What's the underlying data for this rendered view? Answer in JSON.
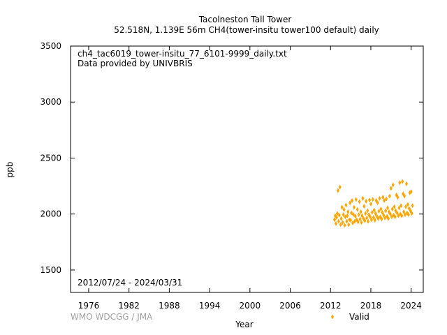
{
  "chart_data": {
    "type": "scatter",
    "title": "Tacolneston Tall Tower",
    "subtitle": "52.518N, 1.139E 56m    CH4(tower-insitu tower100 default) daily",
    "file_label": "ch4_tac6019_tower-insitu_77_6101-9999_daily.txt",
    "provider_label": "Data provided by UNIVBRIS",
    "date_range_label": "2012/07/24 - 2024/03/31",
    "xlabel": "Year",
    "ylabel": "ppb",
    "xlim": [
      1973.3,
      2025.8
    ],
    "ylim": [
      1300,
      3500
    ],
    "x_ticks": [
      {
        "value": 1976,
        "label": "1976"
      },
      {
        "value": 1982,
        "label": "1982"
      },
      {
        "value": 1988,
        "label": "1988"
      },
      {
        "value": 1994,
        "label": "1994"
      },
      {
        "value": 2000,
        "label": "2000"
      },
      {
        "value": 2006,
        "label": "2006"
      },
      {
        "value": 2012,
        "label": "2012"
      },
      {
        "value": 2018,
        "label": "2018"
      },
      {
        "value": 2024,
        "label": "2024"
      }
    ],
    "y_ticks": [
      {
        "value": 1500,
        "label": "1500"
      },
      {
        "value": 2000,
        "label": "2000"
      },
      {
        "value": 2500,
        "label": "2500"
      },
      {
        "value": 3000,
        "label": "3000"
      },
      {
        "value": 3500,
        "label": "3500"
      }
    ],
    "legend": {
      "position": "bottom-right",
      "entries": [
        {
          "name": "Valid",
          "color": "#ffa500"
        }
      ]
    },
    "grid": false,
    "series": [
      {
        "name": "Valid",
        "color": "#ffa500",
        "points": [
          [
            2012.6,
            1950
          ],
          [
            2012.7,
            1985
          ],
          [
            2012.8,
            1915
          ],
          [
            2012.9,
            1970
          ],
          [
            2013.0,
            2005
          ],
          [
            2013.1,
            2210
          ],
          [
            2013.2,
            1935
          ],
          [
            2013.3,
            1990
          ],
          [
            2013.4,
            2240
          ],
          [
            2013.5,
            1905
          ],
          [
            2013.6,
            1960
          ],
          [
            2013.7,
            2060
          ],
          [
            2013.8,
            1925
          ],
          [
            2013.9,
            1995
          ],
          [
            2014.0,
            2040
          ],
          [
            2014.1,
            1900
          ],
          [
            2014.2,
            1975
          ],
          [
            2014.3,
            2080
          ],
          [
            2014.4,
            1935
          ],
          [
            2014.5,
            1985
          ],
          [
            2014.6,
            2020
          ],
          [
            2014.7,
            1905
          ],
          [
            2014.8,
            1950
          ],
          [
            2014.9,
            2100
          ],
          [
            2015.0,
            1945
          ],
          [
            2015.1,
            2010
          ],
          [
            2015.2,
            2120
          ],
          [
            2015.3,
            1920
          ],
          [
            2015.4,
            1995
          ],
          [
            2015.5,
            2060
          ],
          [
            2015.6,
            1935
          ],
          [
            2015.7,
            1980
          ],
          [
            2015.8,
            2130
          ],
          [
            2015.9,
            1950
          ],
          [
            2016.0,
            2040
          ],
          [
            2016.1,
            1930
          ],
          [
            2016.2,
            1995
          ],
          [
            2016.3,
            2110
          ],
          [
            2016.4,
            1955
          ],
          [
            2016.5,
            2020
          ],
          [
            2016.6,
            1925
          ],
          [
            2016.7,
            1985
          ],
          [
            2016.8,
            2140
          ],
          [
            2016.9,
            1960
          ],
          [
            2017.0,
            2070
          ],
          [
            2017.1,
            1940
          ],
          [
            2017.2,
            2005
          ],
          [
            2017.3,
            2115
          ],
          [
            2017.4,
            1965
          ],
          [
            2017.5,
            2030
          ],
          [
            2017.6,
            1935
          ],
          [
            2017.7,
            1995
          ],
          [
            2017.8,
            2125
          ],
          [
            2017.9,
            1975
          ],
          [
            2018.0,
            2090
          ],
          [
            2018.1,
            1950
          ],
          [
            2018.2,
            2015
          ],
          [
            2018.3,
            2130
          ],
          [
            2018.4,
            1970
          ],
          [
            2018.5,
            2035
          ],
          [
            2018.6,
            1945
          ],
          [
            2018.7,
            2005
          ],
          [
            2018.8,
            2120
          ],
          [
            2018.9,
            1980
          ],
          [
            2019.0,
            2100
          ],
          [
            2019.1,
            1960
          ],
          [
            2019.2,
            2025
          ],
          [
            2019.3,
            2140
          ],
          [
            2019.4,
            1975
          ],
          [
            2019.5,
            2045
          ],
          [
            2019.6,
            1955
          ],
          [
            2019.7,
            2015
          ],
          [
            2019.8,
            2150
          ],
          [
            2019.9,
            1990
          ],
          [
            2020.0,
            2120
          ],
          [
            2020.1,
            1965
          ],
          [
            2020.2,
            2030
          ],
          [
            2020.3,
            2135
          ],
          [
            2020.4,
            1980
          ],
          [
            2020.5,
            2055
          ],
          [
            2020.6,
            1960
          ],
          [
            2020.7,
            2020
          ],
          [
            2020.8,
            2160
          ],
          [
            2020.9,
            2000
          ],
          [
            2021.0,
            2230
          ],
          [
            2021.1,
            1975
          ],
          [
            2021.2,
            2045
          ],
          [
            2021.3,
            2260
          ],
          [
            2021.4,
            1990
          ],
          [
            2021.5,
            2065
          ],
          [
            2021.6,
            1975
          ],
          [
            2021.7,
            2030
          ],
          [
            2021.8,
            2170
          ],
          [
            2021.9,
            2010
          ],
          [
            2022.0,
            2150
          ],
          [
            2022.1,
            1985
          ],
          [
            2022.2,
            2055
          ],
          [
            2022.3,
            2280
          ],
          [
            2022.4,
            2000
          ],
          [
            2022.5,
            2075
          ],
          [
            2022.6,
            1985
          ],
          [
            2022.7,
            2290
          ],
          [
            2022.8,
            2180
          ],
          [
            2022.9,
            2020
          ],
          [
            2023.0,
            2160
          ],
          [
            2023.1,
            1995
          ],
          [
            2023.2,
            2065
          ],
          [
            2023.3,
            2270
          ],
          [
            2023.4,
            2010
          ],
          [
            2023.5,
            2085
          ],
          [
            2023.6,
            1995
          ],
          [
            2023.7,
            2050
          ],
          [
            2023.8,
            2190
          ],
          [
            2023.9,
            2030
          ],
          [
            2024.0,
            2200
          ],
          [
            2024.1,
            2005
          ],
          [
            2024.2,
            2075
          ]
        ]
      }
    ]
  },
  "footer": {
    "credit": "WMO WDCGG / JMA"
  }
}
